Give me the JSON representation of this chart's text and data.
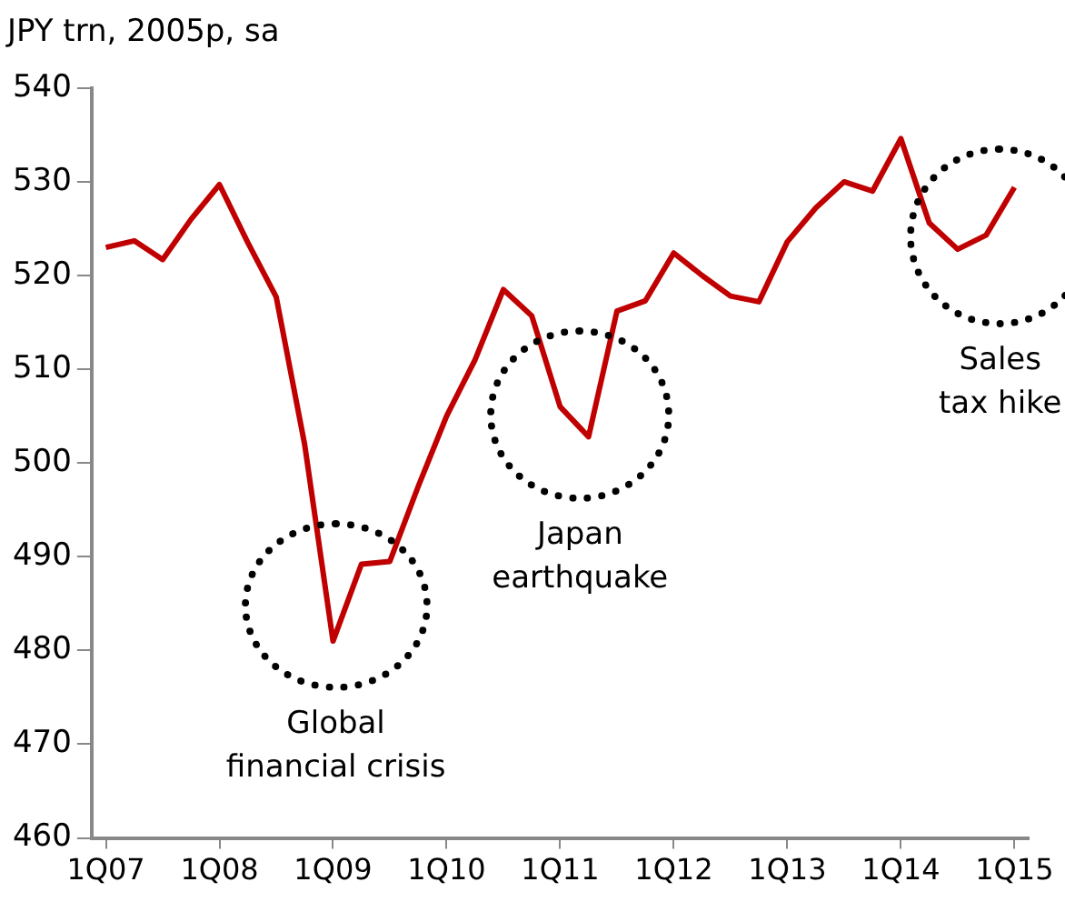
{
  "chart_data": {
    "type": "line",
    "title": "JPY trn, 2005p, sa",
    "categories": [
      "1Q07",
      null,
      null,
      null,
      "1Q08",
      null,
      null,
      null,
      "1Q09",
      null,
      null,
      null,
      "1Q10",
      null,
      null,
      null,
      "1Q11",
      null,
      null,
      null,
      "1Q12",
      null,
      null,
      null,
      "1Q13",
      null,
      null,
      null,
      "1Q14",
      null,
      null,
      null,
      "1Q15"
    ],
    "series": [
      {
        "color": "#c00000",
        "values": [
          523,
          523.7,
          521.7,
          526,
          529.7,
          523.5,
          517.7,
          502,
          481,
          489.2,
          489.5,
          497.5,
          505,
          511,
          518.5,
          515.7,
          506,
          502.8,
          516.2,
          517.3,
          522.4,
          520,
          517.8,
          517.2,
          523.6,
          527.2,
          530,
          529,
          534.6,
          525.6,
          522.8,
          524.3,
          529.4
        ]
      }
    ],
    "ylim": [
      460,
      540
    ],
    "yticks": [
      460,
      470,
      480,
      490,
      500,
      510,
      520,
      530,
      540
    ],
    "grid": false,
    "legend": false,
    "marker": "none",
    "line_style": "solid",
    "annotations": [
      "Global\nfinancial crisis",
      "Japan\nearthquake",
      "Sales\ntax hike"
    ]
  }
}
